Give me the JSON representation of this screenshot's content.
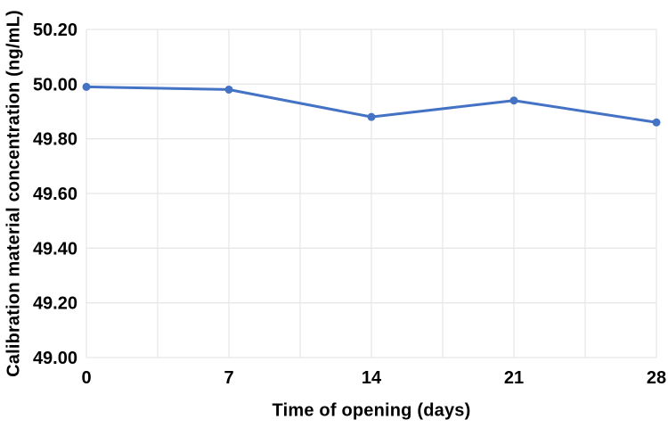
{
  "chart_data": {
    "type": "line",
    "xlabel": "Time of opening (days)",
    "ylabel": "Calibration material concentration (ng/mL)",
    "x": [
      0,
      7,
      14,
      21,
      28
    ],
    "values": [
      49.99,
      49.98,
      49.88,
      49.94,
      49.86
    ],
    "xlim": [
      0,
      28
    ],
    "ylim": [
      49.0,
      50.2
    ],
    "x_tick_labels": [
      "0",
      "7",
      "14",
      "21",
      "28"
    ],
    "y_tick_labels": [
      "49.00",
      "49.20",
      "49.40",
      "49.60",
      "49.80",
      "50.00",
      "50.20"
    ],
    "minor_x_grid_step_days": 3.5,
    "grid": "on",
    "legend_position": "none",
    "line_color": "#4472C4",
    "marker_color": "#4472C4",
    "grid_color": "#E7E7E7",
    "text_color": "#000000",
    "background": "#FFFFFF"
  }
}
